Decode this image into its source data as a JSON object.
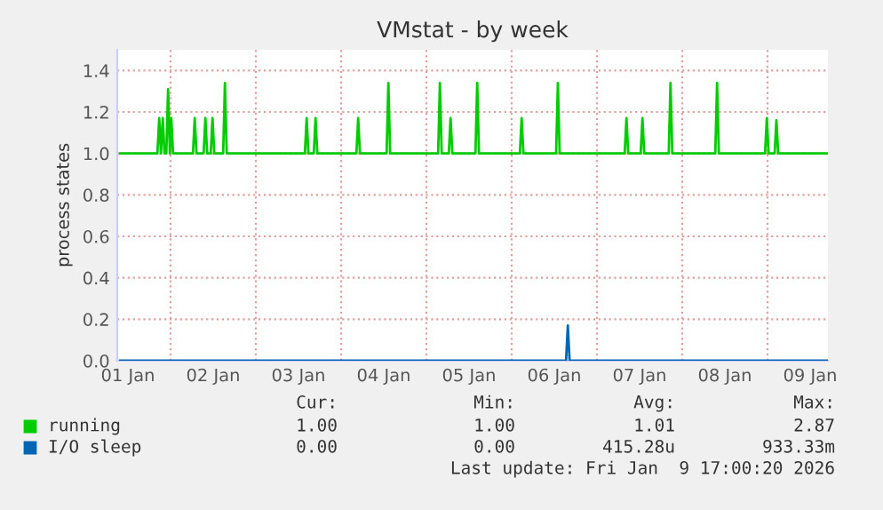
{
  "chart_data": {
    "type": "line",
    "title": "VMstat - by week",
    "ylabel": "process states",
    "xlim": [
      "2026-01-01T09:00",
      "2026-01-09T17:00"
    ],
    "xticks": [
      {
        "value": "2026-01-01T12:00",
        "label": "01 Jan"
      },
      {
        "value": "2026-01-02T12:00",
        "label": "02 Jan"
      },
      {
        "value": "2026-01-03T12:00",
        "label": "03 Jan"
      },
      {
        "value": "2026-01-04T12:00",
        "label": "04 Jan"
      },
      {
        "value": "2026-01-05T12:00",
        "label": "05 Jan"
      },
      {
        "value": "2026-01-06T12:00",
        "label": "06 Jan"
      },
      {
        "value": "2026-01-07T12:00",
        "label": "07 Jan"
      },
      {
        "value": "2026-01-08T12:00",
        "label": "08 Jan"
      },
      {
        "value": "2026-01-09T12:00",
        "label": "09 Jan"
      }
    ],
    "ylim": [
      0,
      1.5
    ],
    "yticks": [
      {
        "value": 0,
        "label": "0.0"
      },
      {
        "value": 0.2,
        "label": "0.2"
      },
      {
        "value": 0.4,
        "label": "0.4"
      },
      {
        "value": 0.6,
        "label": "0.6"
      },
      {
        "value": 0.8,
        "label": "0.8"
      },
      {
        "value": 1.0,
        "label": "1.0"
      },
      {
        "value": 1.2,
        "label": "1.2"
      },
      {
        "value": 1.4,
        "label": "1.4"
      }
    ],
    "grid": true,
    "legend": "bottom",
    "marker": "none",
    "line_style": "solid",
    "series": [
      {
        "name": "running",
        "color": "#00cc00",
        "x": [
          "2026-01-01T09:48",
          "2026-01-01T20:18",
          "2026-01-01T20:48",
          "2026-01-01T21:18",
          "2026-01-01T21:48",
          "2026-01-01T22:18",
          "2026-01-01T22:48",
          "2026-01-01T23:18",
          "2026-01-01T23:48",
          "2026-01-02T00:12",
          "2026-01-02T00:42",
          "2026-01-02T06:18",
          "2026-01-02T06:48",
          "2026-01-02T07:18",
          "2026-01-02T09:18",
          "2026-01-02T09:48",
          "2026-01-02T10:18",
          "2026-01-02T11:18",
          "2026-01-02T11:48",
          "2026-01-02T12:18",
          "2026-01-02T14:48",
          "2026-01-02T15:18",
          "2026-01-02T15:48",
          "2026-01-03T13:48",
          "2026-01-03T14:18",
          "2026-01-03T14:48",
          "2026-01-03T16:18",
          "2026-01-03T16:48",
          "2026-01-03T17:18",
          "2026-01-04T04:18",
          "2026-01-04T04:48",
          "2026-01-04T05:18",
          "2026-01-04T12:48",
          "2026-01-04T13:18",
          "2026-01-04T13:48",
          "2026-01-05T03:18",
          "2026-01-05T03:48",
          "2026-01-05T04:18",
          "2026-01-05T06:18",
          "2026-01-05T06:48",
          "2026-01-05T07:18",
          "2026-01-05T13:48",
          "2026-01-05T14:18",
          "2026-01-05T14:48",
          "2026-01-06T02:18",
          "2026-01-06T02:48",
          "2026-01-06T03:18",
          "2026-01-06T12:30",
          "2026-01-06T13:00",
          "2026-01-06T13:30",
          "2026-01-07T07:48",
          "2026-01-07T08:18",
          "2026-01-07T08:48",
          "2026-01-07T12:18",
          "2026-01-07T12:48",
          "2026-01-07T13:18",
          "2026-01-07T20:12",
          "2026-01-07T20:42",
          "2026-01-07T21:12",
          "2026-01-08T09:18",
          "2026-01-08T09:48",
          "2026-01-08T10:18",
          "2026-01-08T23:18",
          "2026-01-08T23:48",
          "2026-01-09T00:18",
          "2026-01-09T02:00",
          "2026-01-09T02:30",
          "2026-01-09T03:00",
          "2026-01-09T16:48"
        ],
        "values": [
          1,
          1,
          1.17,
          1,
          1.17,
          1,
          1,
          1.31,
          1,
          1.17,
          1,
          1,
          1.17,
          1,
          1,
          1.17,
          1,
          1,
          1.17,
          1,
          1,
          1.34,
          1,
          1,
          1.17,
          1,
          1,
          1.17,
          1,
          1,
          1.17,
          1,
          1,
          1.34,
          1,
          1,
          1.34,
          1,
          1,
          1.17,
          1,
          1,
          1.34,
          1,
          1,
          1.17,
          1,
          1,
          1.34,
          1,
          1,
          1.17,
          1,
          1,
          1.17,
          1,
          1,
          1.34,
          1,
          1,
          1.34,
          1,
          1,
          1.17,
          1,
          1,
          1.16,
          1,
          1
        ]
      },
      {
        "name": "I/O sleep",
        "color": "#0066b3",
        "x": [
          "2026-01-01T09:48",
          "2026-01-06T15:18",
          "2026-01-06T15:48",
          "2026-01-06T16:18",
          "2026-01-09T16:48"
        ],
        "values": [
          0,
          0,
          0.17,
          0,
          0
        ]
      }
    ],
    "annotations": [
      "Cur:",
      "Min:",
      "Avg:",
      "Max:",
      "1.00",
      "1.00",
      "1.01",
      "2.87",
      "0.00",
      "0.00",
      "415.28u",
      "933.33m",
      "Last update: Fri Jan  9 17:00:20 2026"
    ]
  }
}
